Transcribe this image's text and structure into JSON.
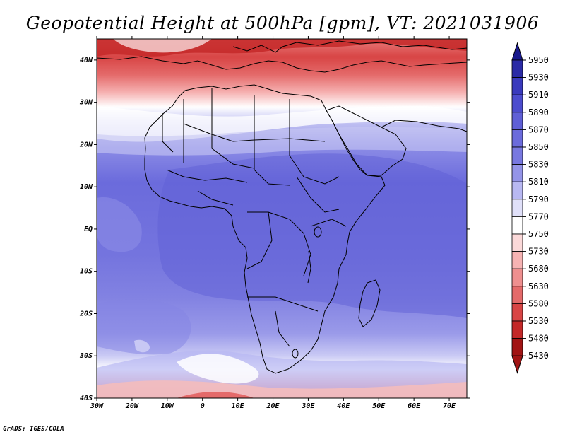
{
  "title": "Geopotential Height at 500hPa [gpm], VT: 2021031906",
  "credit": "GrADS: IGES/COLA",
  "map": {
    "lon_range": [
      -30,
      75
    ],
    "lat_range": [
      -40,
      45
    ],
    "lon_ticks": [
      "30W",
      "20W",
      "10W",
      "0",
      "10E",
      "20E",
      "30E",
      "40E",
      "50E",
      "60E",
      "70E"
    ],
    "lat_ticks": [
      "40N",
      "30N",
      "20N",
      "10N",
      "EQ",
      "10S",
      "20S",
      "30S",
      "40S"
    ]
  },
  "colorbar": {
    "levels": [
      "5950",
      "5930",
      "5910",
      "5890",
      "5870",
      "5850",
      "5830",
      "5810",
      "5790",
      "5770",
      "5750",
      "5730",
      "5680",
      "5630",
      "5580",
      "5530",
      "5480",
      "5430"
    ],
    "colors": [
      "#19198c",
      "#2a2aa6",
      "#3a3abd",
      "#4c4cce",
      "#5f5fd6",
      "#6b6bdc",
      "#7878e0",
      "#9494e8",
      "#b8b8f2",
      "#e0e0f9",
      "#ffffff",
      "#fbd9d9",
      "#f6b3b3",
      "#ee8f8f",
      "#e46a6a",
      "#d84545",
      "#c42828",
      "#a11414"
    ]
  }
}
